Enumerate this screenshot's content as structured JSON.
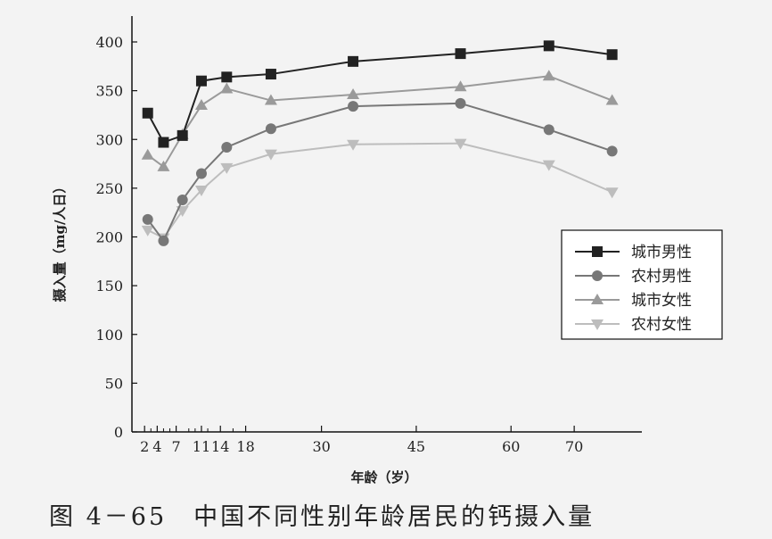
{
  "chart_data": {
    "type": "line",
    "title": "",
    "caption": "图 4－65　中国不同性别年龄居民的钙摄入量",
    "xlabel": "年龄（岁）",
    "ylabel": "摄入量（mg/人日）",
    "ylim": [
      0,
      400
    ],
    "yticks": [
      "0",
      "50",
      "100",
      "150",
      "200",
      "250",
      "300",
      "350",
      "400"
    ],
    "xlim": [
      0,
      80
    ],
    "xticks": [
      {
        "value": 2,
        "label": "2"
      },
      {
        "value": 4,
        "label": "4"
      },
      {
        "value": 7,
        "label": "7"
      },
      {
        "value": 11,
        "label": "11"
      },
      {
        "value": 14,
        "label": "14"
      },
      {
        "value": 18,
        "label": "18"
      },
      {
        "value": 30,
        "label": "30"
      },
      {
        "value": 45,
        "label": "45"
      },
      {
        "value": 60,
        "label": "60"
      },
      {
        "value": 70,
        "label": "70"
      }
    ],
    "minor_xticks": [
      3,
      5,
      6,
      9,
      10,
      12,
      16
    ],
    "x": [
      2.5,
      5,
      8,
      11,
      15,
      22,
      35,
      52,
      66,
      76
    ],
    "legend_position": "right",
    "grid": false,
    "series": [
      {
        "name": "城市男性",
        "marker": "square",
        "color": "#222222",
        "values": [
          327,
          297,
          304,
          360,
          364,
          367,
          380,
          388,
          396,
          387
        ]
      },
      {
        "name": "农村男性",
        "marker": "circle",
        "color": "#777777",
        "values": [
          218,
          196,
          238,
          265,
          292,
          311,
          334,
          337,
          310,
          288
        ]
      },
      {
        "name": "城市女性",
        "marker": "triangle-up",
        "color": "#9a9a9a",
        "values": [
          284,
          272,
          305,
          335,
          352,
          340,
          346,
          354,
          365,
          340
        ]
      },
      {
        "name": "农村女性",
        "marker": "triangle-down",
        "color": "#bdbdbd",
        "values": [
          207,
          199,
          227,
          248,
          271,
          285,
          295,
          296,
          274,
          246
        ]
      }
    ]
  }
}
